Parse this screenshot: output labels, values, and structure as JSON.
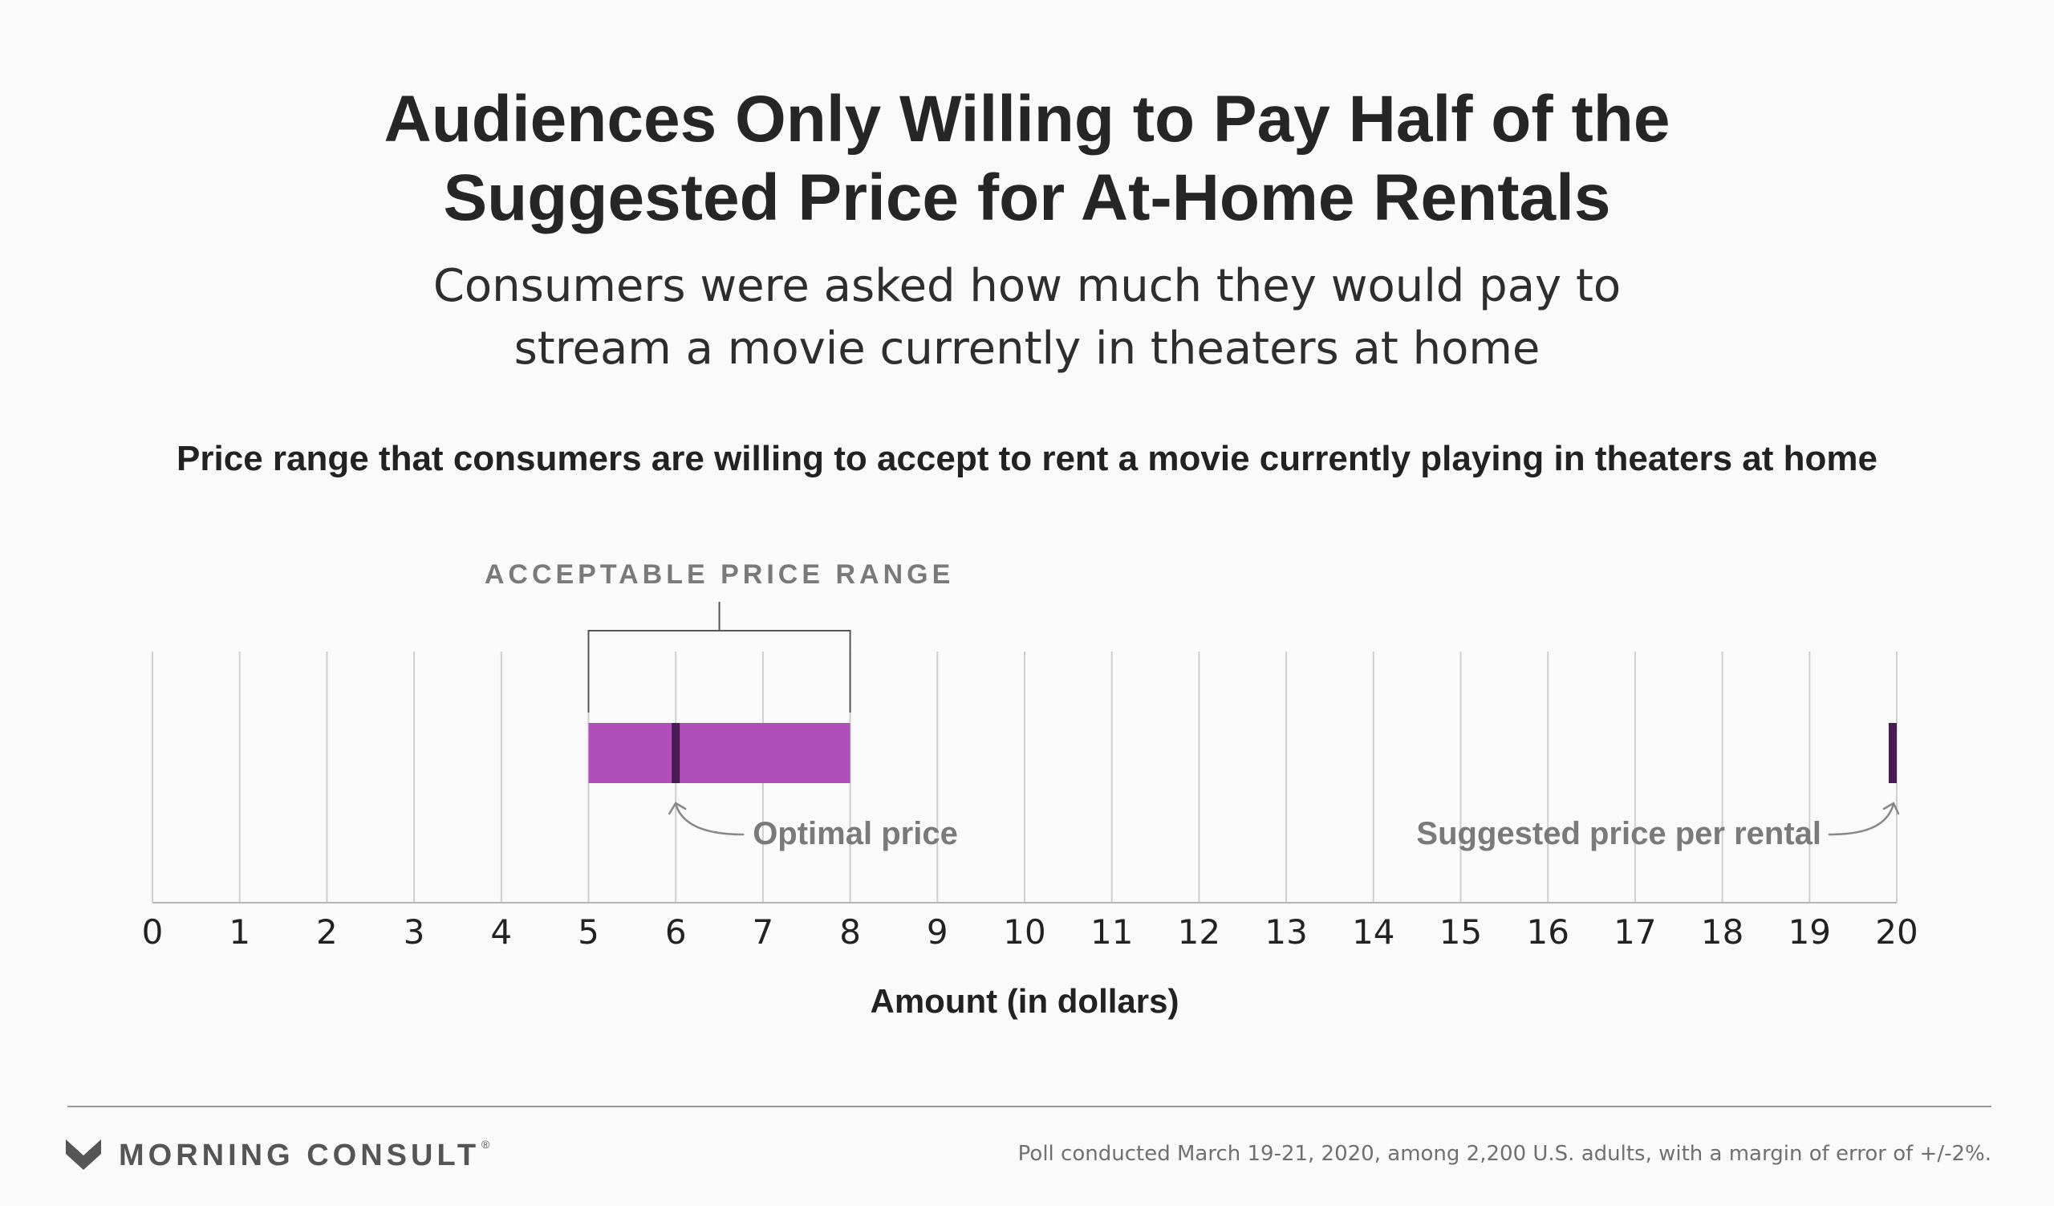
{
  "header": {
    "title_line1": "Audiences Only Willing to Pay Half of the",
    "title_line2": "Suggested Price for At-Home Rentals",
    "subtitle_line1": "Consumers were asked how much they would pay to",
    "subtitle_line2": "stream a movie currently in theaters at home",
    "chart_heading": "Price range that consumers are willing to accept to rent a movie currently playing in theaters at home"
  },
  "chart_data": {
    "type": "bar",
    "title": "Price range that consumers are willing to accept to rent a movie currently playing in theaters at home",
    "xlabel": "Amount (in dollars)",
    "ylabel": "",
    "xlim": [
      0,
      20
    ],
    "x_ticks": [
      0,
      1,
      2,
      3,
      4,
      5,
      6,
      7,
      8,
      9,
      10,
      11,
      12,
      13,
      14,
      15,
      16,
      17,
      18,
      19,
      20
    ],
    "grid": true,
    "acceptable_range": {
      "label": "ACCEPTABLE PRICE RANGE",
      "start": 5,
      "end": 8,
      "color": "#b14fba"
    },
    "optimal_price": {
      "label": "Optimal price",
      "value": 6,
      "color": "#4a1a55"
    },
    "suggested_price": {
      "label": "Suggested price per rental",
      "value": 20,
      "color": "#4a1a55"
    },
    "colors": {
      "grid": "#cfcfcf",
      "axis": "#b5b5b5",
      "tick_text": "#222222",
      "annotation_text": "#7a7a7a",
      "bracket": "#555555"
    }
  },
  "footer": {
    "brand": "MORNING CONSULT",
    "brand_mark": "®",
    "logo_icon": "morning-consult-m-icon",
    "note": "Poll conducted March 19-21, 2020, among 2,200 U.S. adults, with a margin of error of +/-2%."
  }
}
